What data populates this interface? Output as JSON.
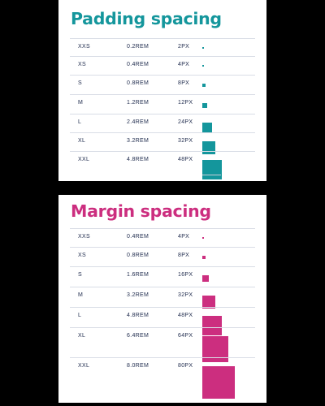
{
  "padding": {
    "title": "Padding spacing",
    "color": "#14969c",
    "rows": [
      {
        "name": "XXS",
        "rem": "0.2REM",
        "px": "2PX",
        "size": 2
      },
      {
        "name": "XS",
        "rem": "0.4REM",
        "px": "4PX",
        "size": 4
      },
      {
        "name": "S",
        "rem": "0.8REM",
        "px": "8PX",
        "size": 8
      },
      {
        "name": "M",
        "rem": "1.2REM",
        "px": "12PX",
        "size": 12
      },
      {
        "name": "L",
        "rem": "2.4REM",
        "px": "24PX",
        "size": 24
      },
      {
        "name": "XL",
        "rem": "3.2REM",
        "px": "32PX",
        "size": 32
      },
      {
        "name": "XXL",
        "rem": "4.8REM",
        "px": "48PX",
        "size": 48
      }
    ]
  },
  "margin": {
    "title": "Margin spacing",
    "color": "#cc2e7f",
    "rows": [
      {
        "name": "XXS",
        "rem": "0.4REM",
        "px": "4PX",
        "size": 4
      },
      {
        "name": "XS",
        "rem": "0.8REM",
        "px": "8PX",
        "size": 8
      },
      {
        "name": "S",
        "rem": "1.6REM",
        "px": "16PX",
        "size": 16
      },
      {
        "name": "M",
        "rem": "3.2REM",
        "px": "32PX",
        "size": 32
      },
      {
        "name": "L",
        "rem": "4.8REM",
        "px": "48PX",
        "size": 48
      },
      {
        "name": "XL",
        "rem": "6.4REM",
        "px": "64PX",
        "size": 64
      },
      {
        "name": "XXL",
        "rem": "8.0REM",
        "px": "80PX",
        "size": 80
      }
    ]
  }
}
